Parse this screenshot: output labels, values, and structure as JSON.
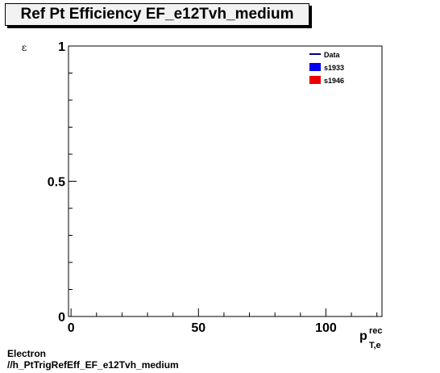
{
  "header": {
    "title": "Ref Pt Efficiency EF_e12Tvh_medium"
  },
  "footer": {
    "line1": "Electron",
    "line2": "//h_PtTrigRefEff_EF_e12Tvh_medium"
  },
  "chart_data": {
    "type": "line",
    "title": "Ref Pt Efficiency EF_e12Tvh_medium",
    "ylabel": "ε",
    "xlabel_main": "p",
    "xlabel_sup": "rec",
    "xlabel_sub": "T,e",
    "xlim": [
      -1,
      122
    ],
    "ylim": [
      0,
      1
    ],
    "x_ticks": [
      0,
      50,
      100
    ],
    "y_ticks": [
      0,
      0.5,
      1
    ],
    "x_tick_labels": [
      "0",
      "50",
      "100"
    ],
    "y_tick_labels": [
      "0",
      "0.5",
      "1"
    ],
    "grid": false,
    "legend_position": "top-right",
    "series": [
      {
        "name": "Data",
        "color": "#000080",
        "marker": "line",
        "x": [],
        "y": []
      },
      {
        "name": "s1933",
        "color": "#0000ee",
        "marker": "box",
        "x": [],
        "y": []
      },
      {
        "name": "s1946",
        "color": "#ee0000",
        "marker": "box",
        "x": [],
        "y": []
      }
    ]
  }
}
